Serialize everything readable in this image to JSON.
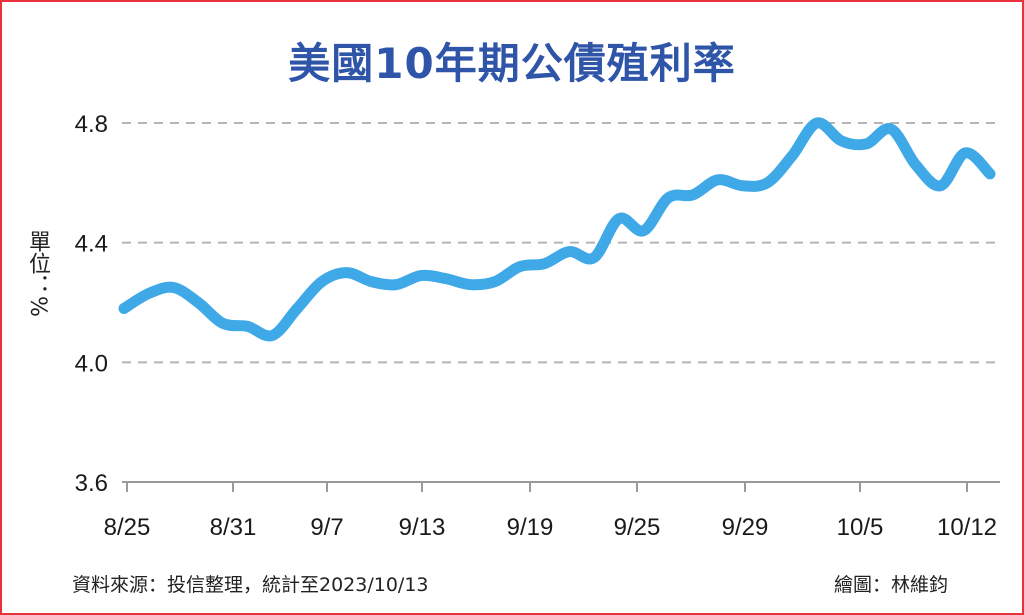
{
  "chart_data": {
    "type": "line",
    "title": "美國10年期公債殖利率",
    "ylabel": "單位：%",
    "ylim": [
      3.6,
      4.8
    ],
    "yticks": [
      "4.8",
      "4.4",
      "4.0",
      "3.6"
    ],
    "ytick_values": [
      4.8,
      4.4,
      4.0,
      3.6
    ],
    "xticks": [
      "8/25",
      "8/31",
      "9/7",
      "9/13",
      "9/19",
      "9/25",
      "9/29",
      "10/5",
      "10/12"
    ],
    "grid": true,
    "series": [
      {
        "color": "#3fa9e8",
        "values": [
          4.18,
          4.23,
          4.25,
          4.2,
          4.13,
          4.12,
          4.09,
          4.18,
          4.27,
          4.3,
          4.27,
          4.26,
          4.29,
          4.28,
          4.26,
          4.27,
          4.32,
          4.33,
          4.37,
          4.35,
          4.48,
          4.44,
          4.55,
          4.56,
          4.61,
          4.59,
          4.6,
          4.69,
          4.8,
          4.74,
          4.73,
          4.78,
          4.66,
          4.59,
          4.7,
          4.63
        ]
      }
    ]
  },
  "footer": {
    "source": "資料來源：投信整理，統計至2023/10/13",
    "credit": "繪圖：林維鈞"
  }
}
